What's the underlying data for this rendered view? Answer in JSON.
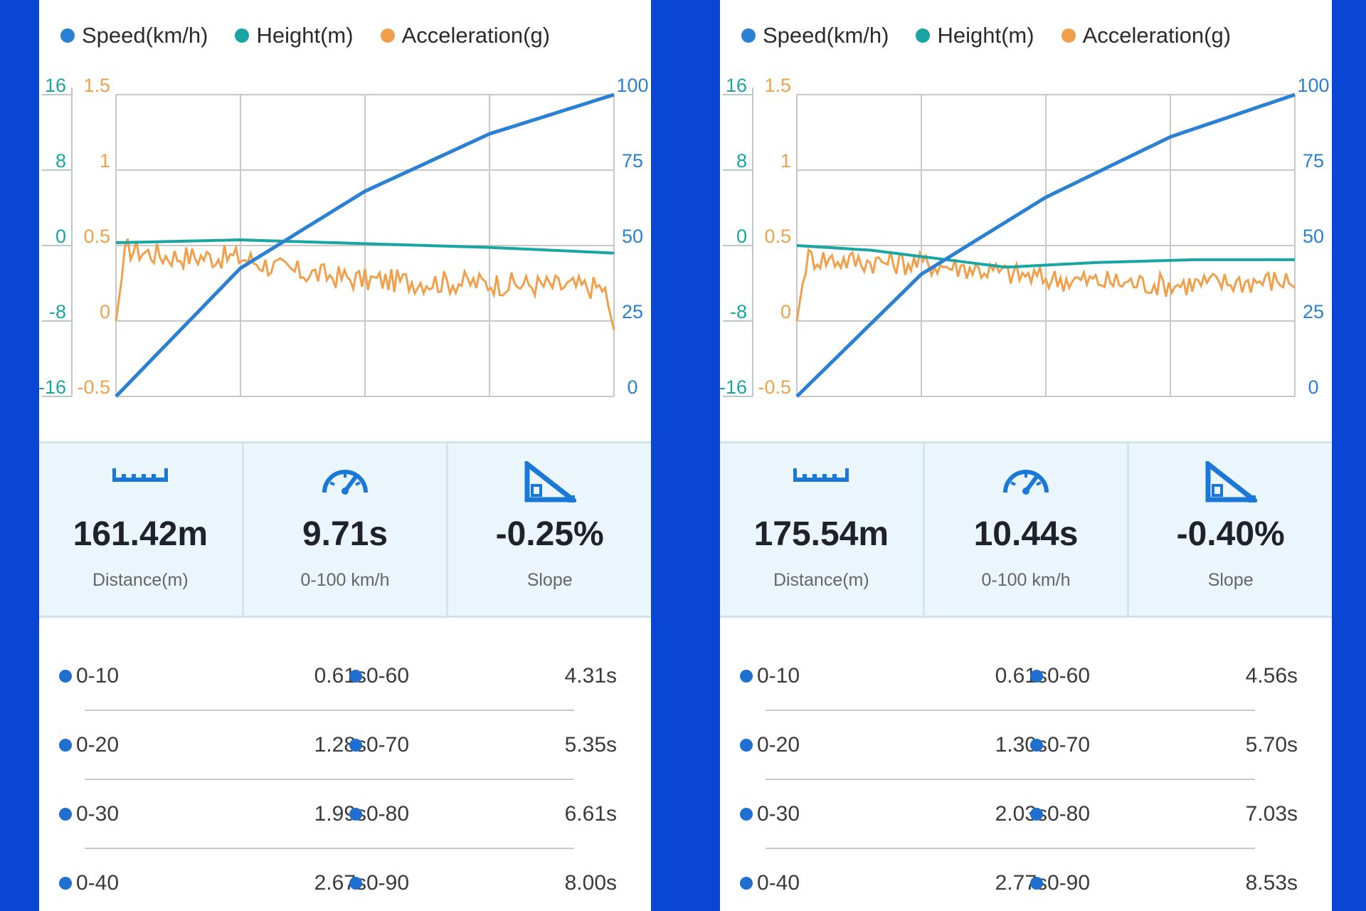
{
  "colors": {
    "speed": "#2a80d2",
    "height": "#19a5a1",
    "acceleration": "#f0a04b",
    "stats_bg": "#eaf6fb",
    "icon": "#1b78d8",
    "background": "#0a46d4"
  },
  "legend": {
    "speed": "Speed(km/h)",
    "height": "Height(m)",
    "acceleration": "Acceleration(g)"
  },
  "panels": [
    {
      "chart_data": {
        "type": "line",
        "series": [
          {
            "name": "Speed(km/h)",
            "axis": "right",
            "x": [
              0,
              0.25,
              0.5,
              0.75,
              1.0
            ],
            "values": [
              0,
              42.5,
              68,
              87,
              100
            ]
          },
          {
            "name": "Height(m)",
            "axis": "left-outer",
            "x": [
              0,
              0.25,
              0.5,
              0.75,
              1.0
            ],
            "values": [
              0.3,
              0.6,
              0.2,
              -0.2,
              -0.8
            ]
          },
          {
            "name": "Acceleration(g)",
            "axis": "left-inner",
            "x": [
              0,
              0.02,
              0.1,
              0.25,
              0.35,
              0.5,
              0.75,
              0.98,
              1.0
            ],
            "values": [
              0,
              0.48,
              0.43,
              0.42,
              0.33,
              0.27,
              0.25,
              0.22,
              -0.06
            ]
          }
        ],
        "y_right": {
          "ticks": [
            "100",
            "75",
            "50",
            "25",
            "0"
          ],
          "range": [
            0,
            100
          ]
        },
        "y_left_outer": {
          "ticks": [
            "16",
            "8",
            "0",
            "-8",
            "-16"
          ],
          "range": [
            -16,
            16
          ]
        },
        "y_left_inner": {
          "ticks": [
            "1.5",
            "1",
            "0.5",
            "0",
            "-0.5"
          ],
          "range": [
            -0.5,
            1.5
          ]
        },
        "grid": true
      },
      "stats": [
        {
          "value": "161.42m",
          "label": "Distance(m)"
        },
        {
          "value": "9.71s",
          "label": "0-100 km/h"
        },
        {
          "value": "-0.25%",
          "label": "Slope"
        }
      ],
      "splits": [
        {
          "a_label": "0-10",
          "a_time": "0.61s",
          "b_label": "0-60",
          "b_time": "4.31s"
        },
        {
          "a_label": "0-20",
          "a_time": "1.28s",
          "b_label": "0-70",
          "b_time": "5.35s"
        },
        {
          "a_label": "0-30",
          "a_time": "1.99s",
          "b_label": "0-80",
          "b_time": "6.61s"
        },
        {
          "a_label": "0-40",
          "a_time": "2.67s",
          "b_label": "0-90",
          "b_time": "8.00s"
        }
      ]
    },
    {
      "chart_data": {
        "type": "line",
        "series": [
          {
            "name": "Speed(km/h)",
            "axis": "right",
            "x": [
              0,
              0.25,
              0.5,
              0.75,
              1.0
            ],
            "values": [
              0,
              40.5,
              66,
              86,
              100
            ]
          },
          {
            "name": "Height(m)",
            "axis": "left-outer",
            "x": [
              0,
              0.15,
              0.3,
              0.42,
              0.6,
              0.8,
              1.0
            ],
            "values": [
              0,
              -0.5,
              -1.5,
              -2.3,
              -1.8,
              -1.5,
              -1.5
            ]
          },
          {
            "name": "Acceleration(g)",
            "axis": "left-inner",
            "x": [
              0,
              0.02,
              0.1,
              0.25,
              0.35,
              0.5,
              0.75,
              0.98,
              1.0
            ],
            "values": [
              0,
              0.42,
              0.4,
              0.38,
              0.35,
              0.28,
              0.24,
              0.27,
              0.22
            ]
          }
        ],
        "y_right": {
          "ticks": [
            "100",
            "75",
            "50",
            "25",
            "0"
          ],
          "range": [
            0,
            100
          ]
        },
        "y_left_outer": {
          "ticks": [
            "16",
            "8",
            "0",
            "-8",
            "-16"
          ],
          "range": [
            -16,
            16
          ]
        },
        "y_left_inner": {
          "ticks": [
            "1.5",
            "1",
            "0.5",
            "0",
            "-0.5"
          ],
          "range": [
            -0.5,
            1.5
          ]
        },
        "grid": true
      },
      "stats": [
        {
          "value": "175.54m",
          "label": "Distance(m)"
        },
        {
          "value": "10.44s",
          "label": "0-100 km/h"
        },
        {
          "value": "-0.40%",
          "label": "Slope"
        }
      ],
      "splits": [
        {
          "a_label": "0-10",
          "a_time": "0.61s",
          "b_label": "0-60",
          "b_time": "4.56s"
        },
        {
          "a_label": "0-20",
          "a_time": "1.30s",
          "b_label": "0-70",
          "b_time": "5.70s"
        },
        {
          "a_label": "0-30",
          "a_time": "2.03s",
          "b_label": "0-80",
          "b_time": "7.03s"
        },
        {
          "a_label": "0-40",
          "a_time": "2.77s",
          "b_label": "0-90",
          "b_time": "8.53s"
        }
      ]
    }
  ]
}
